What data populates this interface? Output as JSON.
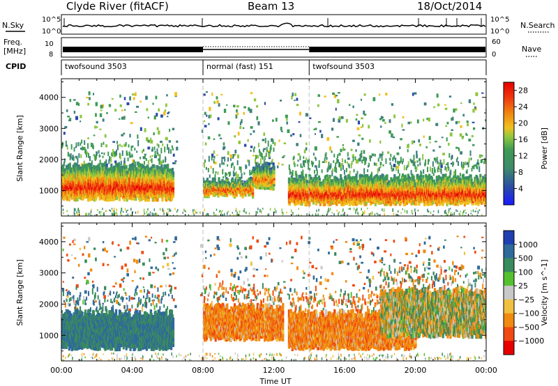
{
  "header": {
    "station": "Clyde River (fitACF)",
    "beam": "Beam 13",
    "date": "18/Oct/2014"
  },
  "side_labels": {
    "nsky": "N.Sky",
    "freq_line1": "Freq.",
    "freq_line2": "[MHz]",
    "cpid": "CPID",
    "nsearch": "N.Search",
    "nave": "Nave"
  },
  "nsky_axis": {
    "top": "10^5",
    "bottom": "10^0"
  },
  "freq_axis": {
    "left_top": "10",
    "left_bottom": "8",
    "right_top": "60",
    "right_bottom": "0"
  },
  "cpid_segments": [
    {
      "label": "twofsound 3503",
      "start_h": 0,
      "end_h": 8
    },
    {
      "label": "normal (fast) 151",
      "start_h": 8,
      "end_h": 14
    },
    {
      "label": "twofsound 3503",
      "start_h": 14,
      "end_h": 24
    }
  ],
  "chart_data": [
    {
      "type": "heatmap",
      "panel": "power",
      "ylabel": "Slant Range [km]",
      "xlabel": "",
      "x_range_h": [
        0,
        24
      ],
      "ylim": [
        180,
        4600
      ],
      "yticks": [
        "1000",
        "2000",
        "3000",
        "4000"
      ],
      "yticks_values": [
        1000,
        2000,
        3000,
        4000
      ],
      "colorbar": {
        "label": "Power [dB]",
        "ticks": [
          "4",
          "8",
          "12",
          "16",
          "20",
          "24",
          "28"
        ],
        "range": [
          0,
          30
        ],
        "colors": [
          "#1a1aff",
          "#2a4aa8",
          "#3f7f7f",
          "#3f9a55",
          "#8cc63f",
          "#f0c020",
          "#f08a10",
          "#f03a10",
          "#e60000"
        ]
      },
      "bands": [
        {
          "start_h": 0.0,
          "end_h": 6.3,
          "low_km": 750,
          "high_km": 1750,
          "peak_db": 28
        },
        {
          "start_h": 8.0,
          "end_h": 10.8,
          "low_km": 850,
          "high_km": 1300,
          "peak_db": 26
        },
        {
          "start_h": 10.8,
          "end_h": 12.0,
          "low_km": 1100,
          "high_km": 1800,
          "peak_db": 24
        },
        {
          "start_h": 12.8,
          "end_h": 24.0,
          "low_km": 600,
          "high_km": 1400,
          "peak_db": 28
        }
      ]
    },
    {
      "type": "heatmap",
      "panel": "velocity",
      "ylabel": "Slant Range [km]",
      "xlabel": "Time UT",
      "x_range_h": [
        0,
        24
      ],
      "ylim": [
        180,
        4600
      ],
      "xticks": [
        "00:00",
        "04:00",
        "08:00",
        "12:00",
        "16:00",
        "20:00",
        "00:00"
      ],
      "xticks_values_h": [
        0,
        4,
        8,
        12,
        16,
        20,
        24
      ],
      "yticks": [
        "1000",
        "2000",
        "3000",
        "4000"
      ],
      "yticks_values": [
        1000,
        2000,
        3000,
        4000
      ],
      "colorbar": {
        "label": "Velocity [m s^-1]",
        "ticks": [
          "1000",
          "500",
          "100",
          "25",
          "−25",
          "−100",
          "−500",
          "−1000"
        ],
        "colors": [
          "#1f3fb0",
          "#2f6a9a",
          "#3a8a5f",
          "#55c030",
          "#c8c8c8",
          "#f0c040",
          "#f08a10",
          "#f04a10",
          "#e60000"
        ]
      },
      "bands": [
        {
          "start_h": 0.0,
          "end_h": 6.3,
          "low_km": 600,
          "high_km": 1700,
          "velocity_ms": 300
        },
        {
          "start_h": 8.0,
          "end_h": 12.5,
          "low_km": 900,
          "high_km": 1900,
          "velocity_ms": -200
        },
        {
          "start_h": 12.8,
          "end_h": 20.0,
          "low_km": 600,
          "high_km": 1700,
          "velocity_ms": -200
        },
        {
          "start_h": 18.0,
          "end_h": 24.0,
          "low_km": 1000,
          "high_km": 2400,
          "velocity_ms": 0
        }
      ]
    }
  ]
}
